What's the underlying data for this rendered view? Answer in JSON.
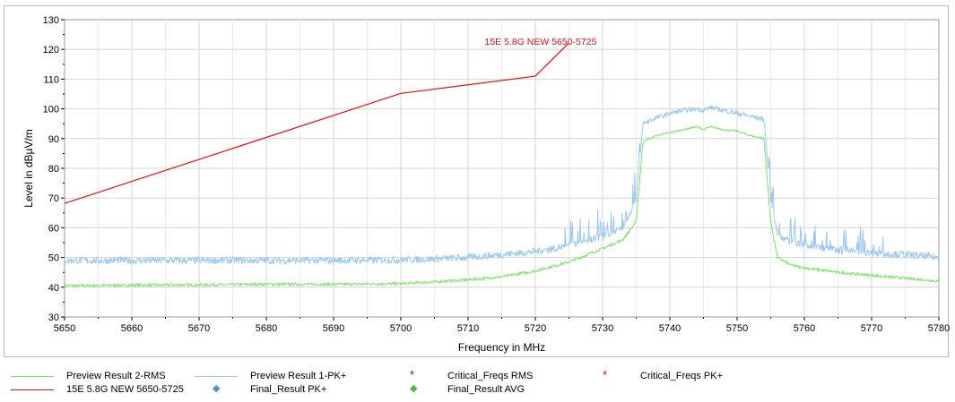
{
  "chart_data": {
    "type": "line",
    "xlabel": "Frequency in MHz",
    "ylabel": "Level in dBµV/m",
    "xlim": [
      5650,
      5780
    ],
    "ylim": [
      30,
      130
    ],
    "x_ticks": [
      "5650",
      "5660",
      "5670",
      "5680",
      "5690",
      "5700",
      "5710",
      "5720",
      "5730",
      "5740",
      "5750",
      "5760",
      "5770",
      "5780"
    ],
    "y_ticks": [
      "30",
      "40",
      "50",
      "60",
      "70",
      "80",
      "90",
      "100",
      "110",
      "120",
      "130"
    ],
    "grid": true,
    "limit_label": "15E 5.8G NEW 5650-5725",
    "series": [
      {
        "name": "Preview Result 2-RMS",
        "color": "#7ae36a",
        "x": [
          5650,
          5660,
          5670,
          5680,
          5690,
          5700,
          5705,
          5710,
          5715,
          5720,
          5725,
          5730,
          5733,
          5735,
          5736,
          5738,
          5740,
          5742,
          5744,
          5745,
          5746,
          5748,
          5750,
          5752,
          5754,
          5755,
          5756,
          5758,
          5760,
          5765,
          5770,
          5775,
          5780
        ],
        "values": [
          40.5,
          40.7,
          40.8,
          41.0,
          41.0,
          41.2,
          41.8,
          42.5,
          43.5,
          45.5,
          48.5,
          53.0,
          56.0,
          62.0,
          89.0,
          91.0,
          92.0,
          93.0,
          94.0,
          93.0,
          94.0,
          93.0,
          92.5,
          91.0,
          90.0,
          62.0,
          50.0,
          47.5,
          46.5,
          45.0,
          44.0,
          43.0,
          42.0
        ]
      },
      {
        "name": "Preview Result 1-PK+",
        "color": "#99c8f2",
        "x": [
          5650,
          5660,
          5670,
          5680,
          5690,
          5700,
          5705,
          5710,
          5715,
          5720,
          5725,
          5730,
          5733,
          5735,
          5736,
          5738,
          5740,
          5742,
          5744,
          5745,
          5746,
          5748,
          5750,
          5752,
          5754,
          5755,
          5756,
          5758,
          5760,
          5765,
          5770,
          5775,
          5780
        ],
        "values": [
          49.0,
          49.0,
          49.0,
          49.0,
          49.0,
          49.2,
          49.5,
          50.0,
          51.0,
          52.0,
          54.0,
          57.0,
          60.0,
          70.0,
          95.0,
          97.0,
          98.5,
          99.5,
          100.0,
          99.5,
          100.5,
          99.5,
          98.5,
          97.5,
          96.5,
          70.0,
          58.0,
          55.0,
          54.0,
          52.5,
          51.5,
          51.0,
          50.0
        ]
      },
      {
        "name": "15E 5.8G NEW 5650-5725",
        "color": "#e01010",
        "x": [
          5650,
          5700,
          5720,
          5725
        ],
        "values": [
          68.2,
          105.2,
          111.0,
          122.2
        ]
      },
      {
        "name": "Critical_Freqs RMS",
        "color": "#2020d0",
        "x": [],
        "values": []
      },
      {
        "name": "Final_Result PK+",
        "color": "#4a90d9",
        "x": [],
        "values": []
      },
      {
        "name": "Critical_Freqs PK+",
        "color": "#e01010",
        "x": [],
        "values": []
      },
      {
        "name": "Final_Result AVG",
        "color": "#3cc43c",
        "x": [],
        "values": []
      }
    ]
  },
  "legend": {
    "rms": "Preview Result 2-RMS",
    "pk": "Preview Result 1-PK+",
    "crit_rms": "Critical_Freqs RMS",
    "crit_pk": "Critical_Freqs PK+",
    "limit": "15E 5.8G NEW 5650-5725",
    "final_pk": "Final_Result PK+",
    "final_avg": "Final_Result AVG"
  }
}
